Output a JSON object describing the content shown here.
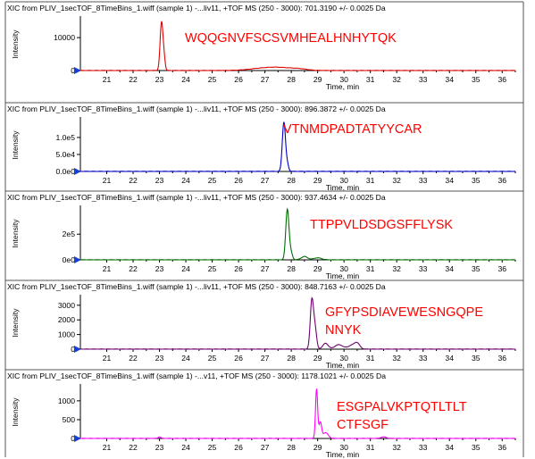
{
  "chart_data": [
    {
      "type": "line",
      "title": "XIC from PLIV_1secTOF_8TimeBins_1.wiff (sample 1) -...liv11, +TOF MS (250 - 3000): 701.3190 +/- 0.0025 Da",
      "xlabel": "Time, min",
      "ylabel": "Intensity",
      "xlim": [
        20,
        36.5
      ],
      "ylim": [
        0,
        16000
      ],
      "x_ticks": [
        "21",
        "22",
        "23",
        "24",
        "25",
        "26",
        "27",
        "28",
        "29",
        "30",
        "31",
        "32",
        "33",
        "34",
        "35",
        "36"
      ],
      "y_ticks": [
        {
          "v": 0,
          "label": "0"
        },
        {
          "v": 10000,
          "label": "10000"
        }
      ],
      "annotation": [
        "WQQGNVFSCSVMHEALHNHYTQK"
      ],
      "color": "#e00000",
      "peaks": [
        {
          "x": 23.08,
          "y": 14800,
          "w": 0.055
        },
        {
          "x": 23.18,
          "y": 3000,
          "w": 0.04
        },
        {
          "x": 26.9,
          "y": 600,
          "w": 0.5
        },
        {
          "x": 27.6,
          "y": 700,
          "w": 0.45
        },
        {
          "x": 28.3,
          "y": 400,
          "w": 0.3
        }
      ]
    },
    {
      "type": "line",
      "title": "XIC from PLIV_1secTOF_8TimeBins_1.wiff (sample 1) -...liv11, +TOF MS (250 - 3000): 896.3872 +/- 0.0025 Da",
      "xlabel": "Time, min",
      "ylabel": "Intensity",
      "xlim": [
        20,
        36.5
      ],
      "ylim": [
        0,
        155000
      ],
      "x_ticks": [
        "21",
        "22",
        "23",
        "24",
        "25",
        "26",
        "27",
        "28",
        "29",
        "30",
        "31",
        "32",
        "33",
        "34",
        "35",
        "36"
      ],
      "y_ticks": [
        {
          "v": 0,
          "label": "0.0e0"
        },
        {
          "v": 50000,
          "label": "5.0e4"
        },
        {
          "v": 100000,
          "label": "1.0e5"
        }
      ],
      "annotation": [
        "VTNMDPADTATYYCAR"
      ],
      "color": "#0000cc",
      "peaks": [
        {
          "x": 27.72,
          "y": 145000,
          "w": 0.06
        },
        {
          "x": 27.85,
          "y": 20000,
          "w": 0.05
        }
      ]
    },
    {
      "type": "line",
      "title": "XIC from PLIV_1secTOF_8TimeBins_1.wiff (sample 1) -...liv11, +TOF MS (250 - 3000): 937.4634 +/- 0.0025 Da",
      "xlabel": "Time, min",
      "ylabel": "Intensity",
      "xlim": [
        20,
        36.5
      ],
      "ylim": [
        0,
        410000
      ],
      "x_ticks": [
        "21",
        "22",
        "23",
        "24",
        "25",
        "26",
        "27",
        "28",
        "29",
        "30",
        "31",
        "32",
        "33",
        "34",
        "35",
        "36"
      ],
      "y_ticks": [
        {
          "v": 0,
          "label": "0e0"
        },
        {
          "v": 200000,
          "label": "2e5"
        }
      ],
      "annotation": [
        "TTPPVLDSDGSFFLYSK"
      ],
      "color": "#007000",
      "peaks": [
        {
          "x": 27.85,
          "y": 390000,
          "w": 0.06
        },
        {
          "x": 27.98,
          "y": 60000,
          "w": 0.06
        },
        {
          "x": 28.5,
          "y": 25000,
          "w": 0.12
        },
        {
          "x": 29.0,
          "y": 15000,
          "w": 0.15
        }
      ]
    },
    {
      "type": "line",
      "title": "XIC from PLIV_1secTOF_8TimeBins_1.wiff (sample 1) -...liv11, +TOF MS (250 - 3000): 848.7163 +/- 0.0025 Da",
      "xlabel": "Time, min",
      "ylabel": "Intensity",
      "xlim": [
        20,
        36.5
      ],
      "ylim": [
        0,
        3600
      ],
      "x_ticks": [
        "21",
        "22",
        "23",
        "24",
        "25",
        "26",
        "27",
        "28",
        "29",
        "30",
        "31",
        "32",
        "33",
        "34",
        "35",
        "36"
      ],
      "y_ticks": [
        {
          "v": 0,
          "label": "0"
        },
        {
          "v": 1000,
          "label": "1000"
        },
        {
          "v": 2000,
          "label": "2000"
        },
        {
          "v": 3000,
          "label": "3000"
        }
      ],
      "annotation": [
        "GFYPSDIAVEWESNGQPE",
        "NNYK"
      ],
      "color": "#700070",
      "peaks": [
        {
          "x": 28.78,
          "y": 3300,
          "w": 0.06
        },
        {
          "x": 28.9,
          "y": 1400,
          "w": 0.06
        },
        {
          "x": 29.3,
          "y": 400,
          "w": 0.1
        },
        {
          "x": 29.8,
          "y": 300,
          "w": 0.15
        },
        {
          "x": 30.5,
          "y": 350,
          "w": 0.1
        },
        {
          "x": 30.3,
          "y": 250,
          "w": 0.15
        }
      ]
    },
    {
      "type": "line",
      "title": "XIC from PLIV_1secTOF_8TimeBins_1.wiff (sample 1) -...v11, +TOF MS (250 - 3000): 1178.1021 +/- 0.0025 Da",
      "xlabel": "Time, min",
      "ylabel": "Intensity",
      "xlim": [
        20,
        36.5
      ],
      "ylim": [
        0,
        1400
      ],
      "x_ticks": [
        "21",
        "22",
        "23",
        "24",
        "25",
        "26",
        "27",
        "28",
        "29",
        "30",
        "31",
        "32",
        "33",
        "34",
        "35",
        "36"
      ],
      "y_ticks": [
        {
          "v": 0,
          "label": "0"
        },
        {
          "v": 500,
          "label": "500"
        },
        {
          "v": 1000,
          "label": "1000"
        }
      ],
      "annotation": [
        "ESGPALVKPTQTLTLT",
        "CTFSGF"
      ],
      "color": "#ff00ff",
      "peaks": [
        {
          "x": 28.96,
          "y": 1320,
          "w": 0.04
        },
        {
          "x": 29.1,
          "y": 420,
          "w": 0.05
        },
        {
          "x": 29.3,
          "y": 150,
          "w": 0.1
        },
        {
          "x": 23.0,
          "y": 40,
          "w": 0.05
        },
        {
          "x": 31.5,
          "y": 40,
          "w": 0.1
        }
      ]
    }
  ]
}
